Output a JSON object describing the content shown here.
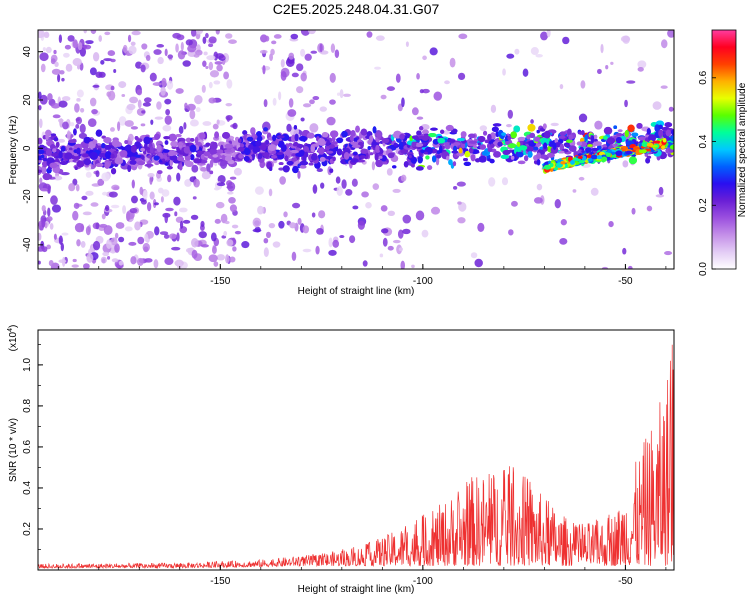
{
  "title": "C2E5.2025.248.04.31.G07",
  "chart_data": [
    {
      "type": "heatmap",
      "name": "spectrogram",
      "xlabel": "Height of straight line (km)",
      "ylabel": "Frequency (Hz)",
      "xlim": [
        -195,
        -38
      ],
      "ylim": [
        -50,
        49
      ],
      "xticks": [
        -150,
        -100,
        -50
      ],
      "yticks": [
        -40,
        -20,
        0,
        20,
        40
      ],
      "colorbar": {
        "label": "Normalized spectral amplitude",
        "range": [
          0,
          0.75
        ],
        "ticks": [
          0.0,
          0.2,
          0.4,
          0.6
        ],
        "colors": [
          "#ffffff",
          "#e3ccf5",
          "#c48fe8",
          "#9b50df",
          "#6a1fd6",
          "#2a0ff0",
          "#0060ff",
          "#00c8ff",
          "#00ff9a",
          "#5aff00",
          "#e8ff00",
          "#ffb000",
          "#ff4000",
          "#ff0020",
          "#ff3ca0"
        ]
      },
      "band": {
        "center_hz_start": -3,
        "center_hz_end": 3,
        "strong_from_km": -108,
        "lower_branch": {
          "from_km": -70,
          "to_km": -40,
          "hz_start": -8,
          "hz_end": 2
        }
      }
    },
    {
      "type": "line",
      "name": "snr",
      "xlabel": "Height of straight line (km)",
      "ylabel": "SNR (10 * v/v)",
      "y_multiplier_label": "(x10",
      "y_multiplier_exp": "4",
      "xlim": [
        -195,
        -38
      ],
      "ylim": [
        0,
        1.17
      ],
      "xticks": [
        -150,
        -100,
        -50
      ],
      "yticks": [
        0.2,
        0.4,
        0.6,
        0.8,
        1.0
      ],
      "color": "#ee3030",
      "envelope": {
        "x": [
          -195,
          -160,
          -140,
          -125,
          -115,
          -108,
          -102,
          -97,
          -92,
          -88,
          -84,
          -80,
          -77,
          -73,
          -70,
          -66,
          -62,
          -58,
          -55,
          -52,
          -49,
          -46,
          -44,
          -42,
          -40,
          -38
        ],
        "y": [
          0.03,
          0.035,
          0.05,
          0.08,
          0.12,
          0.18,
          0.25,
          0.3,
          0.38,
          0.46,
          0.48,
          0.5,
          0.52,
          0.42,
          0.36,
          0.28,
          0.22,
          0.24,
          0.26,
          0.3,
          0.45,
          0.6,
          0.7,
          0.78,
          0.95,
          1.15
        ]
      }
    }
  ]
}
